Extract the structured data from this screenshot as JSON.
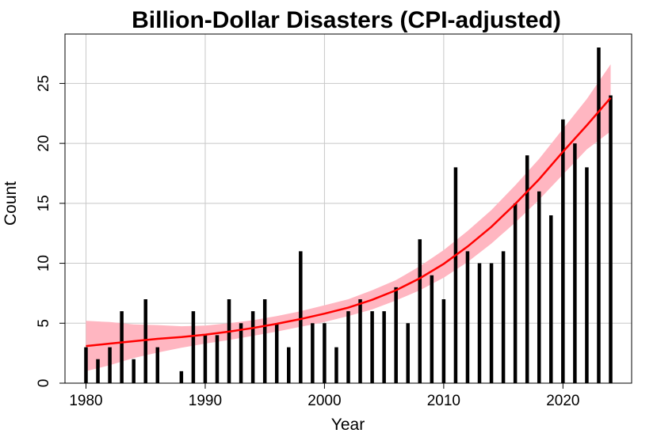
{
  "chart_data": {
    "type": "bar",
    "title": "Billion-Dollar Disasters (CPI-adjusted)",
    "xlabel": "Year",
    "ylabel": "Count",
    "x": [
      1980,
      1981,
      1982,
      1983,
      1984,
      1985,
      1986,
      1987,
      1988,
      1989,
      1990,
      1991,
      1992,
      1993,
      1994,
      1995,
      1996,
      1997,
      1998,
      1999,
      2000,
      2001,
      2002,
      2003,
      2004,
      2005,
      2006,
      2007,
      2008,
      2009,
      2010,
      2011,
      2012,
      2013,
      2014,
      2015,
      2016,
      2017,
      2018,
      2019,
      2020,
      2021,
      2022,
      2023,
      2024
    ],
    "values": [
      3,
      2,
      3,
      6,
      2,
      7,
      3,
      0,
      1,
      6,
      4,
      4,
      7,
      5,
      6,
      7,
      5,
      3,
      11,
      5,
      5,
      3,
      6,
      7,
      6,
      6,
      8,
      5,
      12,
      9,
      7,
      18,
      11,
      10,
      10,
      11,
      15,
      19,
      16,
      14,
      22,
      20,
      18,
      28,
      24
    ],
    "xticks": [
      1980,
      1990,
      2000,
      2010,
      2020
    ],
    "yticks": [
      0,
      5,
      10,
      15,
      20,
      25
    ],
    "xlim": [
      1978.24,
      2025.76
    ],
    "ylim": [
      0,
      29.12
    ],
    "grid": true,
    "bar_color": "#000000",
    "trend": {
      "x": [
        1980,
        1982,
        1984,
        1986,
        1988,
        1990,
        1992,
        1994,
        1996,
        1998,
        2000,
        2002,
        2004,
        2006,
        2008,
        2010,
        2012,
        2014,
        2016,
        2018,
        2020,
        2022,
        2024
      ],
      "y": [
        3.1,
        3.3,
        3.5,
        3.7,
        3.85,
        4.05,
        4.3,
        4.6,
        4.95,
        5.35,
        5.8,
        6.3,
        6.95,
        7.75,
        8.75,
        9.95,
        11.4,
        13.05,
        14.95,
        17.0,
        19.3,
        21.5,
        23.8
      ],
      "lower": [
        1.0,
        1.5,
        2.1,
        2.55,
        2.95,
        3.3,
        3.6,
        3.95,
        4.3,
        4.7,
        5.1,
        5.6,
        6.15,
        6.9,
        7.75,
        8.8,
        10.1,
        11.65,
        13.4,
        15.3,
        17.4,
        19.5,
        21.0
      ],
      "upper": [
        5.2,
        5.1,
        4.9,
        4.85,
        4.75,
        4.8,
        5.0,
        5.25,
        5.6,
        6.0,
        6.5,
        7.0,
        7.75,
        8.6,
        9.75,
        11.1,
        12.7,
        14.45,
        16.5,
        18.7,
        21.2,
        23.7,
        26.6
      ],
      "line_color": "#ff0000",
      "band_color": "#ffb6c1"
    }
  }
}
